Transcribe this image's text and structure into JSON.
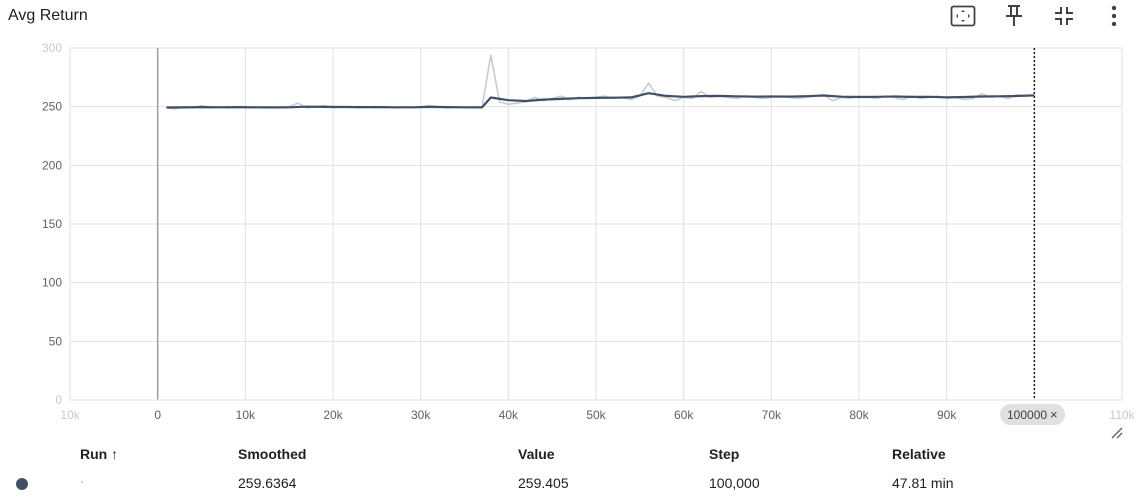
{
  "card": {
    "title": "Avg Return",
    "toolbar": [
      {
        "name": "fit-domain-icon"
      },
      {
        "name": "pin-icon"
      },
      {
        "name": "collapse-icon"
      },
      {
        "name": "more-vert-icon"
      }
    ]
  },
  "chart_data": {
    "type": "line",
    "title": "Avg Return",
    "xlabel": "",
    "ylabel": "",
    "xlim": [
      -10000,
      110000
    ],
    "ylim": [
      0,
      300
    ],
    "x_ticks": [
      "10k",
      "0",
      "10k",
      "20k",
      "30k",
      "40k",
      "50k",
      "60k",
      "70k",
      "80k",
      "90k",
      "100000",
      "110k"
    ],
    "x_tick_values": [
      -10000,
      0,
      10000,
      20000,
      30000,
      40000,
      50000,
      60000,
      70000,
      80000,
      90000,
      100000,
      110000
    ],
    "y_ticks": [
      "0",
      "50",
      "100",
      "150",
      "200",
      "250",
      "300"
    ],
    "y_tick_values": [
      0,
      50,
      100,
      150,
      200,
      250,
      300
    ],
    "grid": true,
    "colors": {
      "smoothed": "#425066",
      "raw": "#c5ccd6"
    },
    "series": [
      {
        "role": "raw",
        "x": [
          1000,
          2000,
          3000,
          4000,
          5000,
          6000,
          7000,
          8000,
          9000,
          10000,
          11000,
          12000,
          13000,
          14000,
          15000,
          16000,
          17000,
          18000,
          19000,
          20000,
          21000,
          22000,
          23000,
          24000,
          25000,
          26000,
          27000,
          28000,
          29000,
          30000,
          31000,
          32000,
          33000,
          34000,
          35000,
          36000,
          37000,
          38000,
          39000,
          40000,
          41000,
          42000,
          43000,
          44000,
          45000,
          46000,
          47000,
          48000,
          49000,
          50000,
          51000,
          52000,
          53000,
          54000,
          55000,
          56000,
          57000,
          58000,
          59000,
          60000,
          61000,
          62000,
          63000,
          64000,
          65000,
          66000,
          67000,
          68000,
          69000,
          70000,
          71000,
          72000,
          73000,
          74000,
          75000,
          76000,
          77000,
          78000,
          79000,
          80000,
          81000,
          82000,
          83000,
          84000,
          85000,
          86000,
          87000,
          88000,
          89000,
          90000,
          91000,
          92000,
          93000,
          94000,
          95000,
          96000,
          97000,
          98000,
          99000,
          100000
        ],
        "values": [
          249,
          248,
          250,
          249,
          251,
          249,
          250,
          249,
          250,
          250,
          249,
          250,
          249,
          249,
          250,
          253,
          249,
          250,
          251,
          249,
          250,
          250,
          249,
          250,
          249,
          250,
          249,
          250,
          249,
          250,
          251,
          250,
          249,
          250,
          249,
          250,
          249,
          294,
          254,
          252,
          253,
          254,
          258,
          255,
          257,
          259,
          256,
          258,
          257,
          258,
          259,
          257,
          258,
          256,
          259,
          270,
          259,
          258,
          255,
          258,
          257,
          263,
          258,
          259,
          258,
          257,
          259,
          258,
          257,
          258,
          259,
          258,
          257,
          258,
          259,
          260,
          255,
          258,
          257,
          259,
          258,
          257,
          259,
          258,
          256,
          259,
          257,
          258,
          259,
          257,
          258,
          256,
          257,
          261,
          258,
          259,
          257,
          260,
          259,
          259.405
        ]
      },
      {
        "role": "smoothed",
        "x": [
          1000,
          3000,
          5000,
          7000,
          9000,
          11000,
          13000,
          15000,
          17000,
          19000,
          21000,
          23000,
          25000,
          27000,
          29000,
          31000,
          33000,
          35000,
          37000,
          38000,
          40000,
          42000,
          44000,
          46000,
          48000,
          50000,
          52000,
          54000,
          56000,
          58000,
          60000,
          62000,
          64000,
          66000,
          68000,
          70000,
          72000,
          74000,
          76000,
          78000,
          80000,
          82000,
          84000,
          86000,
          88000,
          90000,
          92000,
          94000,
          96000,
          98000,
          100000
        ],
        "values": [
          249.3,
          249.4,
          249.6,
          249.5,
          249.6,
          249.5,
          249.4,
          249.5,
          250.0,
          249.8,
          249.7,
          249.6,
          249.6,
          249.5,
          249.5,
          249.8,
          249.6,
          249.5,
          249.4,
          257.8,
          255.5,
          254.8,
          256.0,
          256.6,
          257.2,
          257.5,
          257.6,
          257.9,
          261.5,
          259.2,
          258.4,
          259.0,
          259.2,
          258.8,
          258.6,
          258.7,
          258.6,
          258.9,
          259.5,
          258.5,
          258.2,
          258.4,
          258.7,
          258.3,
          258.4,
          258.0,
          258.2,
          258.7,
          258.8,
          259.1,
          259.6364
        ]
      }
    ],
    "cursor_step": 100000
  },
  "step_chip": {
    "label": "100000",
    "close": "×"
  },
  "table": {
    "headers": {
      "run": "Run ↑",
      "smoothed": "Smoothed",
      "value": "Value",
      "step": "Step",
      "relative": "Relative"
    },
    "rows": [
      {
        "run": ".",
        "smoothed": "259.6364",
        "value": "259.405",
        "step": "100,000",
        "relative": "47.81 min",
        "color": "#425066"
      }
    ]
  }
}
